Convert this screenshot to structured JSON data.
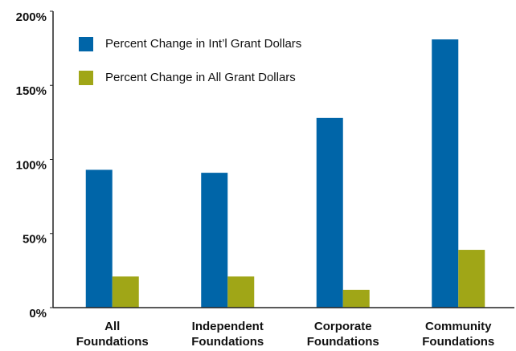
{
  "chart_data": {
    "type": "bar",
    "categories": [
      "All Foundations",
      "Independent Foundations",
      "Corporate Foundations",
      "Community Foundations"
    ],
    "series": [
      {
        "name": "Percent Change in Int’l Grant Dollars",
        "color": "#0065a8",
        "values": [
          93,
          91,
          128,
          181
        ]
      },
      {
        "name": "Percent Change in All Grant Dollars",
        "color": "#a0a617",
        "values": [
          21,
          21,
          12,
          39
        ]
      }
    ],
    "ylim": [
      0,
      200
    ],
    "yticks": [
      {
        "value": 0,
        "label": "0%"
      },
      {
        "value": 50,
        "label": "50%"
      },
      {
        "value": 100,
        "label": "100%"
      },
      {
        "value": 150,
        "label": "150%"
      },
      {
        "value": 200,
        "label": "200%"
      }
    ],
    "grid": false,
    "legend": "upper left"
  }
}
